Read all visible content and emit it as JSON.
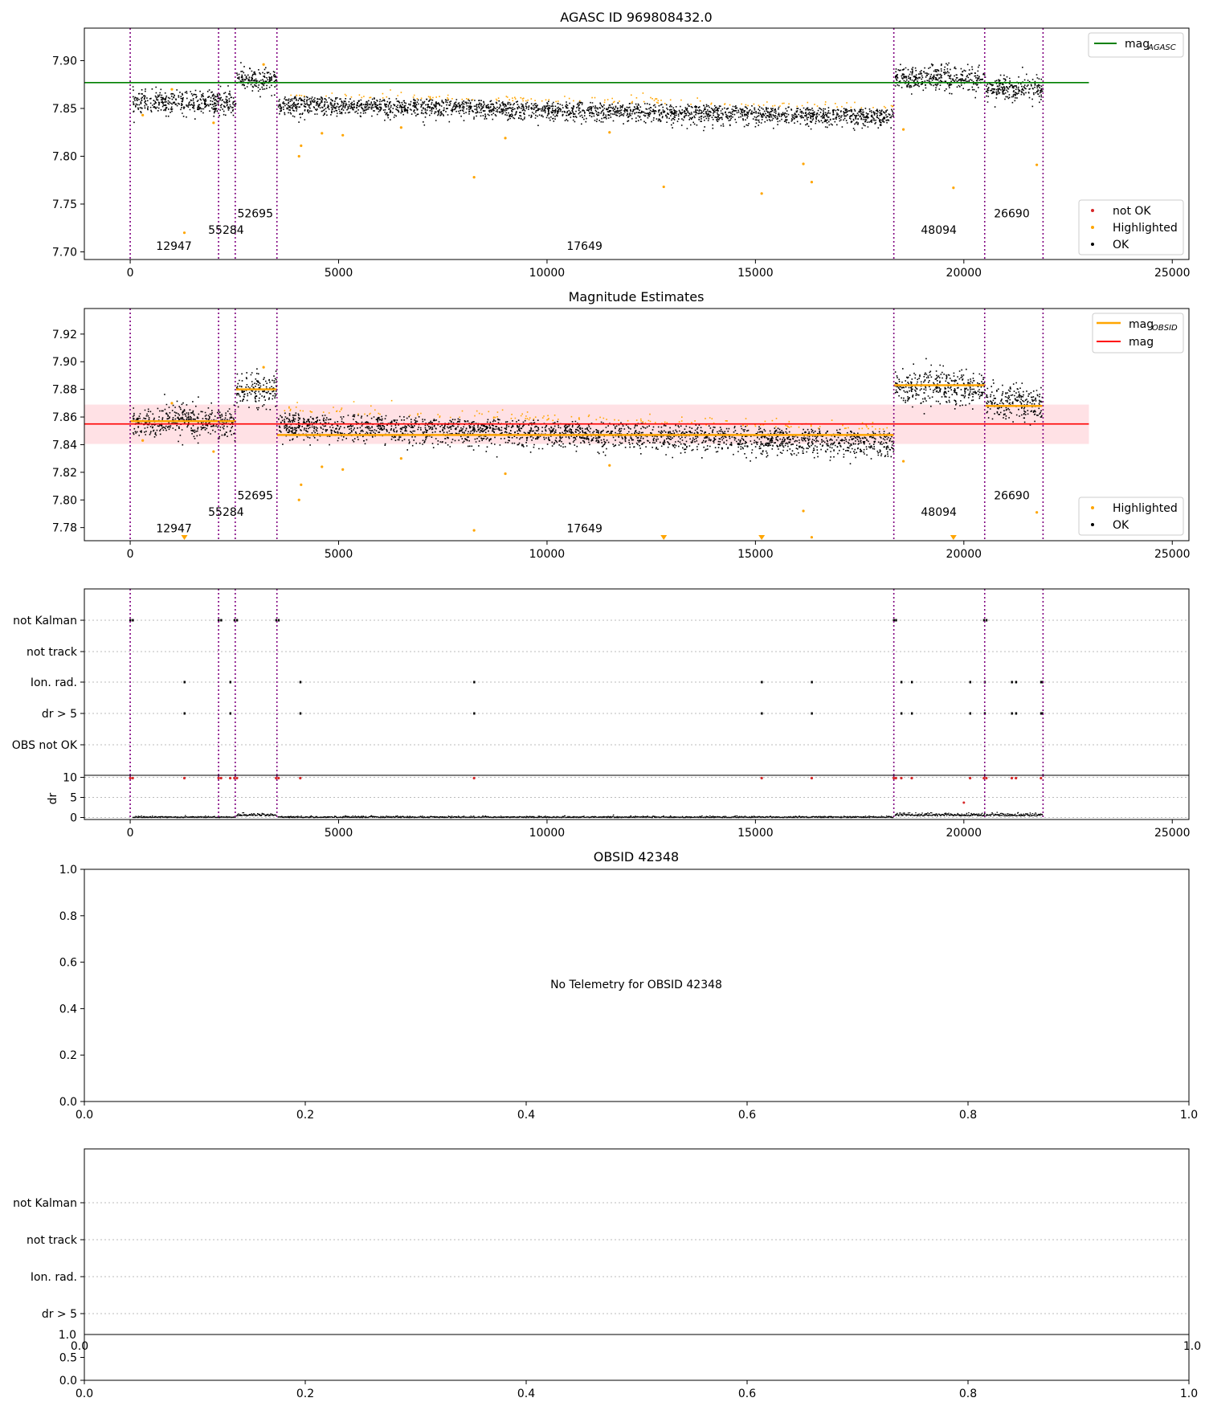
{
  "chart_data": [
    {
      "id": "agasc",
      "type": "scatter",
      "title": "AGASC ID 969808432.0",
      "xlabel": "",
      "ylabel": "",
      "xlim": [
        -1100,
        25400
      ],
      "ylim": [
        7.692,
        7.934
      ],
      "xticks": [
        0,
        5000,
        10000,
        15000,
        20000,
        25000
      ],
      "yticks": [
        7.7,
        7.75,
        7.8,
        7.85,
        7.9
      ],
      "ytick_labels": [
        "7.70",
        "7.75",
        "7.80",
        "7.85",
        "7.90"
      ],
      "hlines": [
        {
          "y": 7.877,
          "x": [
            -1100,
            23000
          ],
          "color": "#008000",
          "legend": "mag",
          "legend_sub": "AGASC"
        }
      ],
      "legend_bottom": [
        "not OK",
        "Highlighted",
        "OK"
      ],
      "obs_labels": [
        {
          "text": "12947",
          "x": 1050,
          "y": 7.702
        },
        {
          "text": "55284",
          "x": 2300,
          "y": 7.719
        },
        {
          "text": "52695",
          "x": 3000,
          "y": 7.736
        },
        {
          "text": "17649",
          "x": 10900,
          "y": 7.702
        },
        {
          "text": "48094",
          "x": 19400,
          "y": 7.719
        },
        {
          "text": "26690",
          "x": 21150,
          "y": 7.736
        }
      ],
      "highlight_points": [
        [
          1300,
          7.72
        ],
        [
          4050,
          7.8
        ],
        [
          4100,
          7.811
        ],
        [
          4600,
          7.824
        ],
        [
          5100,
          7.822
        ],
        [
          8250,
          7.778
        ],
        [
          9000,
          7.819
        ],
        [
          12800,
          7.768
        ],
        [
          15150,
          7.761
        ],
        [
          16150,
          7.792
        ],
        [
          16350,
          7.773
        ],
        [
          18550,
          7.828
        ],
        [
          19750,
          7.767
        ],
        [
          21750,
          7.791
        ],
        [
          300,
          7.843
        ],
        [
          1000,
          7.87
        ],
        [
          2000,
          7.835
        ],
        [
          3200,
          7.896
        ],
        [
          6500,
          7.83
        ],
        [
          11500,
          7.825
        ]
      ]
    },
    {
      "id": "mag",
      "type": "scatter",
      "title": "Magnitude Estimates",
      "xlabel": "",
      "ylabel": "",
      "xlim": [
        -1100,
        25400
      ],
      "ylim": [
        7.7705,
        7.9385
      ],
      "xticks": [
        0,
        5000,
        10000,
        15000,
        20000,
        25000
      ],
      "yticks": [
        7.78,
        7.8,
        7.82,
        7.84,
        7.86,
        7.88,
        7.9,
        7.92
      ],
      "ytick_labels": [
        "7.78",
        "7.80",
        "7.82",
        "7.84",
        "7.86",
        "7.88",
        "7.90",
        "7.92"
      ],
      "band": {
        "y": [
          7.8405,
          7.869
        ],
        "x": [
          -1100,
          23000
        ],
        "color": "#ff9aa8"
      },
      "hlines": [
        {
          "y": 7.855,
          "x": [
            -1100,
            23000
          ],
          "color": "#ff0000",
          "legend": "mag",
          "legend_sub": ""
        }
      ],
      "obsid_lines": [
        {
          "x": [
            0,
            2540
          ],
          "y": 7.857
        },
        {
          "x": [
            2540,
            3520
          ],
          "y": 7.88
        },
        {
          "x": [
            3520,
            18320
          ],
          "y": 7.847
        },
        {
          "x": [
            18320,
            20520
          ],
          "y": 7.883
        },
        {
          "x": [
            20520,
            21880
          ],
          "y": 7.868
        }
      ],
      "obsid_legend": "mag",
      "obsid_legend_sub": "OBSID",
      "legend_bottom": [
        "Highlighted",
        "OK"
      ],
      "obs_labels": [
        {
          "text": "12947",
          "x": 1050,
          "y": 7.7765
        },
        {
          "text": "55284",
          "x": 2300,
          "y": 7.7885
        },
        {
          "text": "52695",
          "x": 3000,
          "y": 7.8005
        },
        {
          "text": "17649",
          "x": 10900,
          "y": 7.7765
        },
        {
          "text": "48094",
          "x": 19400,
          "y": 7.7885
        },
        {
          "text": "26690",
          "x": 21150,
          "y": 7.8005
        }
      ],
      "highlight_points": [
        [
          4050,
          7.8
        ],
        [
          4100,
          7.811
        ],
        [
          4600,
          7.824
        ],
        [
          5100,
          7.822
        ],
        [
          8250,
          7.778
        ],
        [
          9000,
          7.819
        ],
        [
          16150,
          7.792
        ],
        [
          16350,
          7.773
        ],
        [
          18550,
          7.828
        ],
        [
          21750,
          7.791
        ],
        [
          300,
          7.843
        ],
        [
          1000,
          7.87
        ],
        [
          2000,
          7.835
        ],
        [
          3200,
          7.896
        ],
        [
          6500,
          7.83
        ],
        [
          11500,
          7.825
        ]
      ],
      "clipped_markers": [
        1300,
        12800,
        15150,
        19750
      ]
    },
    {
      "id": "flags1",
      "type": "scatter",
      "title": "",
      "xlim": [
        -1100,
        25400
      ],
      "xticks": [
        0,
        5000,
        10000,
        15000,
        20000,
        25000
      ],
      "rows": [
        "not Kalman",
        "not track",
        "Ion. rad.",
        "dr > 5",
        "OBS not OK"
      ],
      "events": {
        "not Kalman": [
          0,
          60,
          2120,
          2180,
          2500,
          2560,
          3500,
          3560,
          18320,
          18370,
          20480,
          20540
        ],
        "Ion. rad.": [
          1300,
          2400,
          4080,
          8250,
          15150,
          16350,
          18500,
          18750,
          20150,
          20500,
          21150,
          21250,
          21850,
          21880
        ],
        "dr > 5": [
          1300,
          2400,
          4080,
          8250,
          15150,
          16350,
          18500,
          18750,
          20150,
          20500,
          21150,
          21250,
          21850,
          21880
        ]
      }
    },
    {
      "id": "dr1",
      "type": "scatter",
      "ylabel": "dr",
      "ylim": [
        -0.5,
        10.5
      ],
      "yticks": [
        0,
        5,
        10
      ],
      "ytick_labels": [
        "0",
        "5",
        "10"
      ],
      "outlier": [
        20000,
        3.7
      ],
      "red_top": [
        0,
        60,
        1300,
        2120,
        2180,
        2400,
        2500,
        2560,
        3500,
        3560,
        4080,
        8250,
        15150,
        16350,
        18320,
        18370,
        18500,
        18750,
        20150,
        20480,
        20540,
        21150,
        21250,
        21850
      ]
    },
    {
      "id": "obsid",
      "type": "scatter",
      "title": "OBSID 42348",
      "annotation": "No Telemetry for OBSID 42348",
      "xlim": [
        0,
        1
      ],
      "ylim": [
        0,
        1
      ],
      "xticks": [
        0.0,
        0.2,
        0.4,
        0.6,
        0.8,
        1.0
      ],
      "xtick_labels": [
        "0.0",
        "0.2",
        "0.4",
        "0.6",
        "0.8",
        "1.0"
      ],
      "yticks": [
        0.0,
        0.2,
        0.4,
        0.6,
        0.8,
        1.0
      ],
      "ytick_labels": [
        "0.0",
        "0.2",
        "0.4",
        "0.6",
        "0.8",
        "1.0"
      ]
    },
    {
      "id": "flags2",
      "type": "scatter",
      "rows": [
        "not Kalman",
        "not track",
        "Ion. rad.",
        "dr > 5"
      ],
      "top_tick": "1.0",
      "edge_left": "0.0",
      "edge_right": "1.0"
    },
    {
      "id": "dr2",
      "type": "scatter",
      "xlim": [
        0,
        1
      ],
      "ylim": [
        0,
        1
      ],
      "yticks": [
        0.0,
        0.5
      ],
      "ytick_labels": [
        "0.0",
        "0.5"
      ],
      "xticks": [
        0.0,
        0.2,
        0.4,
        0.6,
        0.8,
        1.0
      ],
      "xtick_labels": [
        "0.0",
        "0.2",
        "0.4",
        "0.6",
        "0.8",
        "1.0"
      ]
    }
  ],
  "obsid_boundaries": [
    0,
    2120,
    2520,
    3520,
    18320,
    20500,
    21900
  ],
  "segments": [
    {
      "x": [
        50,
        2520
      ],
      "base": 7.857,
      "slope": 0,
      "spread": 0.006,
      "hl": false
    },
    {
      "x": [
        2540,
        3500
      ],
      "base": 7.88,
      "slope": 0,
      "spread": 0.006,
      "hl": false
    },
    {
      "x": [
        3540,
        18300
      ],
      "base": 7.855,
      "slope": -9e-07,
      "spread": 0.0055,
      "hl": true
    },
    {
      "x": [
        18340,
        20500
      ],
      "base": 7.882,
      "slope": 0,
      "spread": 0.0065,
      "hl": false
    },
    {
      "x": [
        20520,
        21880
      ],
      "base": 7.871,
      "slope": 0,
      "spread": 0.006,
      "hl": false
    }
  ],
  "colors": {
    "ok": "#000000",
    "highlighted": "#ffa500",
    "not_ok": "#d62728",
    "boundary": "#800080",
    "agasc": "#008000",
    "mag": "#ff0000",
    "obsid": "#ffa500"
  }
}
